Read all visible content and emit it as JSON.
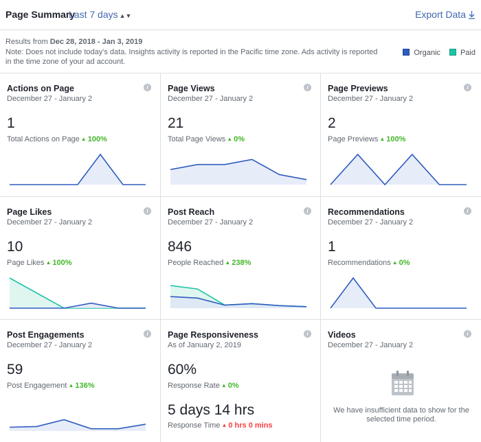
{
  "header": {
    "title": "Page Summary",
    "range_label": "Last 7 days",
    "range_caret": "⬍",
    "export_label": "Export Data"
  },
  "info": {
    "results_prefix": "Results from ",
    "results_range": "Dec 28, 2018 - Jan 3, 2019",
    "note": "Note: Does not include today's data. Insights activity is reported in the Pacific time zone. Ads activity is reported in the time zone of your ad account."
  },
  "legend": {
    "organic": "Organic",
    "paid": "Paid",
    "organic_color": "#2e5cbe",
    "paid_color": "#20c3a5"
  },
  "cards": [
    {
      "title": "Actions on Page",
      "date": "December 27 - January 2",
      "value": "1",
      "metric": "Total Actions on Page",
      "change": "100%",
      "dir": "up",
      "organic": [
        0,
        0,
        0,
        0,
        1,
        0,
        0
      ],
      "organic_max": 1
    },
    {
      "title": "Page Views",
      "date": "December 27 - January 2",
      "value": "21",
      "metric": "Total Page Views",
      "change": "0%",
      "dir": "up",
      "organic": [
        3,
        4,
        4,
        5,
        2,
        1
      ],
      "organic_max": 6
    },
    {
      "title": "Page Previews",
      "date": "December 27 - January 2",
      "value": "2",
      "metric": "Page Previews",
      "change": "100%",
      "dir": "up",
      "organic": [
        0,
        1,
        0,
        1,
        0,
        0
      ],
      "organic_max": 1
    },
    {
      "title": "Page Likes",
      "date": "December 27 - January 2",
      "value": "10",
      "metric": "Page Likes",
      "change": "100%",
      "dir": "up",
      "organic": [
        0,
        0,
        0,
        1,
        0,
        0
      ],
      "paid": [
        6,
        3,
        0,
        0,
        0,
        0
      ],
      "organic_max": 6
    },
    {
      "title": "Post Reach",
      "date": "December 27 - January 2",
      "value": "846",
      "metric": "People Reached",
      "change": "238%",
      "dir": "up",
      "organic": [
        230,
        200,
        60,
        90,
        50,
        30
      ],
      "paid": [
        450,
        380,
        60,
        90,
        50,
        30
      ],
      "organic_max": 600
    },
    {
      "title": "Recommendations",
      "date": "December 27 - January 2",
      "value": "1",
      "metric": "Recommendations",
      "change": "0%",
      "dir": "up",
      "organic": [
        0,
        1,
        0,
        0,
        0,
        0,
        0
      ],
      "organic_max": 1
    },
    {
      "title": "Post Engagements",
      "date": "December 27 - January 2",
      "value": "59",
      "metric": "Post Engagement",
      "change": "136%",
      "dir": "up",
      "organic": [
        5,
        6,
        15,
        3,
        3,
        9
      ],
      "organic_max": 40
    },
    {
      "title": "Page Responsiveness",
      "date": "As of January 2, 2019",
      "value": "60%",
      "metric": "Response Rate",
      "change": "0%",
      "dir": "up",
      "value2": "5 days 14 hrs",
      "metric2": "Response Time",
      "change2": "0 hrs 0 mins",
      "dir2": "up"
    },
    {
      "title": "Videos",
      "date": "December 27 - January 2",
      "no_data": "We have insufficient data to show for the selected time period."
    }
  ]
}
